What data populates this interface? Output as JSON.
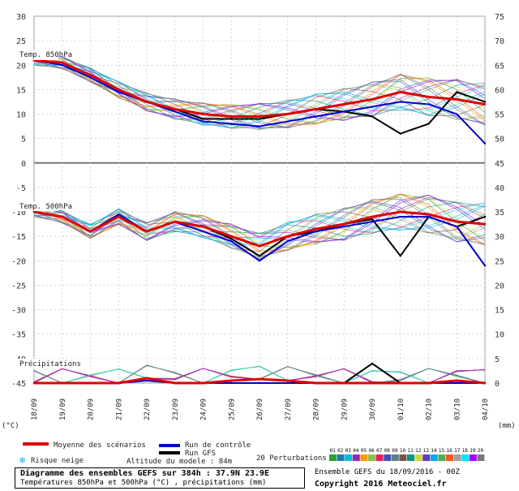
{
  "header": {
    "left_unit": "(°C)",
    "right_unit": "(mm)"
  },
  "panels": {
    "t850_label": "Temp. 850hPa",
    "t500_label": "Temp. 500hPa",
    "precip_label": "Précipitations"
  },
  "legend": {
    "mean_label": "Moyenne des scénarios",
    "control_label": "Run de contrôle",
    "gfs_label": "Run GFS",
    "snow_label": "Risque neige",
    "snow_icon": "snowflake-icon",
    "altitude_label": "Altitude du modele : 84m",
    "perturb_label": "20 Perturbations",
    "perturb_numbers": [
      "01",
      "02",
      "03",
      "04",
      "05",
      "06",
      "07",
      "08",
      "09",
      "10",
      "11",
      "12",
      "13",
      "14",
      "15",
      "16",
      "17",
      "18",
      "19",
      "20"
    ],
    "perturb_colors": [
      "#2ca02c",
      "#1f77b4",
      "#00bcd4",
      "#9c27b0",
      "#ff9800",
      "#8bc34a",
      "#e91e63",
      "#3f51b5",
      "#607d8b",
      "#795548",
      "#009688",
      "#cddc39",
      "#673ab7",
      "#03a9f4",
      "#4caf50",
      "#ff5722",
      "#9e9e9e",
      "#00e5ff",
      "#aa00ff",
      "#777777"
    ]
  },
  "footer": {
    "title": "Diagramme des ensembles GEFS sur 384h : 37.9N 23.9E",
    "subtitle": "Températures 850hPa et 500hPa (°C) , précipitations (mm)",
    "run_info": "Ensemble GEFS du 18/09/2016 - 00Z",
    "copyright": "Copyright 2016 Meteociel.fr"
  },
  "colors": {
    "mean": "#dd0000",
    "control": "#0000cc",
    "gfs": "#000000",
    "grid": "#bbbbbb",
    "zero_line": "#777777"
  },
  "chart_data": {
    "type": "line",
    "left_axis_ticks": [
      30,
      25,
      20,
      15,
      10,
      5,
      0,
      -5,
      -10,
      -15,
      -20,
      -25,
      -30,
      -35,
      -40,
      -45
    ],
    "right_axis_ticks": [
      75,
      70,
      65,
      60,
      55,
      50,
      45,
      40,
      35,
      30,
      25,
      20,
      15,
      10,
      5,
      0
    ],
    "x_labels": [
      "18/09",
      "19/09",
      "20/09",
      "21/09",
      "22/09",
      "23/09",
      "24/09",
      "25/09",
      "26/09",
      "27/09",
      "28/09",
      "29/09",
      "30/09",
      "01/10",
      "02/10",
      "03/10",
      "04/10"
    ],
    "t850": {
      "mean": [
        21,
        20.5,
        18,
        15,
        12.5,
        11,
        10,
        9.5,
        9.5,
        10,
        11,
        12,
        13,
        14.5,
        13.5,
        13,
        12
      ],
      "control": [
        21,
        20,
        17.5,
        14.5,
        12.5,
        10.5,
        8.5,
        8,
        7.5,
        8.5,
        9.5,
        10.5,
        11.5,
        12.5,
        12,
        10,
        4
      ],
      "gfs": [
        21,
        20.5,
        18,
        15,
        12.5,
        11,
        9,
        9,
        9,
        10,
        11,
        10.5,
        9.5,
        6,
        8,
        14.5,
        12.5
      ]
    },
    "t500": {
      "mean": [
        -10,
        -11,
        -14,
        -11,
        -14,
        -12,
        -13,
        -15,
        -17,
        -15,
        -13.5,
        -12.5,
        -11,
        -10,
        -10.5,
        -12,
        -12.5
      ],
      "control": [
        -10,
        -11,
        -14,
        -10.5,
        -14,
        -12,
        -14,
        -16,
        -20,
        -16,
        -14,
        -13,
        -12,
        -11,
        -11,
        -13,
        -21
      ],
      "gfs": [
        -10,
        -11,
        -14,
        -11,
        -14,
        -12,
        -13,
        -15.5,
        -19,
        -15,
        -14,
        -12.5,
        -11.5,
        -19,
        -11,
        -13,
        -11
      ]
    },
    "precip_mm": {
      "mean": [
        0,
        0,
        0,
        0,
        1,
        0,
        0,
        0.5,
        0.8,
        0.5,
        0,
        0,
        0,
        0,
        0,
        0.5,
        0
      ],
      "control": [
        0,
        0,
        0,
        0,
        0.5,
        0,
        0,
        0,
        0,
        0,
        0,
        0,
        0,
        0,
        0,
        0,
        0
      ],
      "gfs": [
        0,
        0,
        0,
        0,
        1,
        0,
        0,
        0,
        0,
        0,
        0,
        0,
        4,
        0,
        0,
        0,
        0
      ]
    }
  }
}
